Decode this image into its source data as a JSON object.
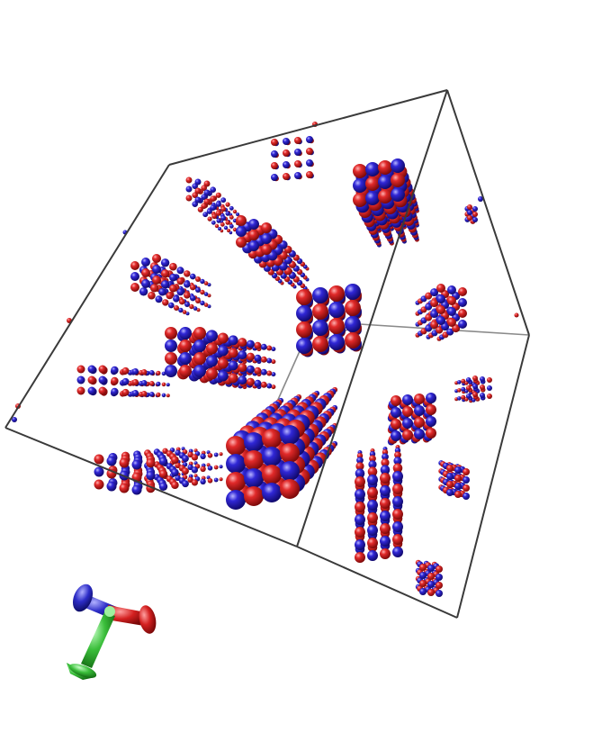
{
  "scene": {
    "subject": "molecular-visualization",
    "atom_colors": {
      "type_a": "#d8161c",
      "type_b": "#2a22cc"
    },
    "cell_edge_color": "#3a3a3a",
    "axis_colors": {
      "x": "#d41b1b",
      "y": "#2aa52a",
      "z": "#2424c4"
    },
    "background": "#ffffff"
  }
}
